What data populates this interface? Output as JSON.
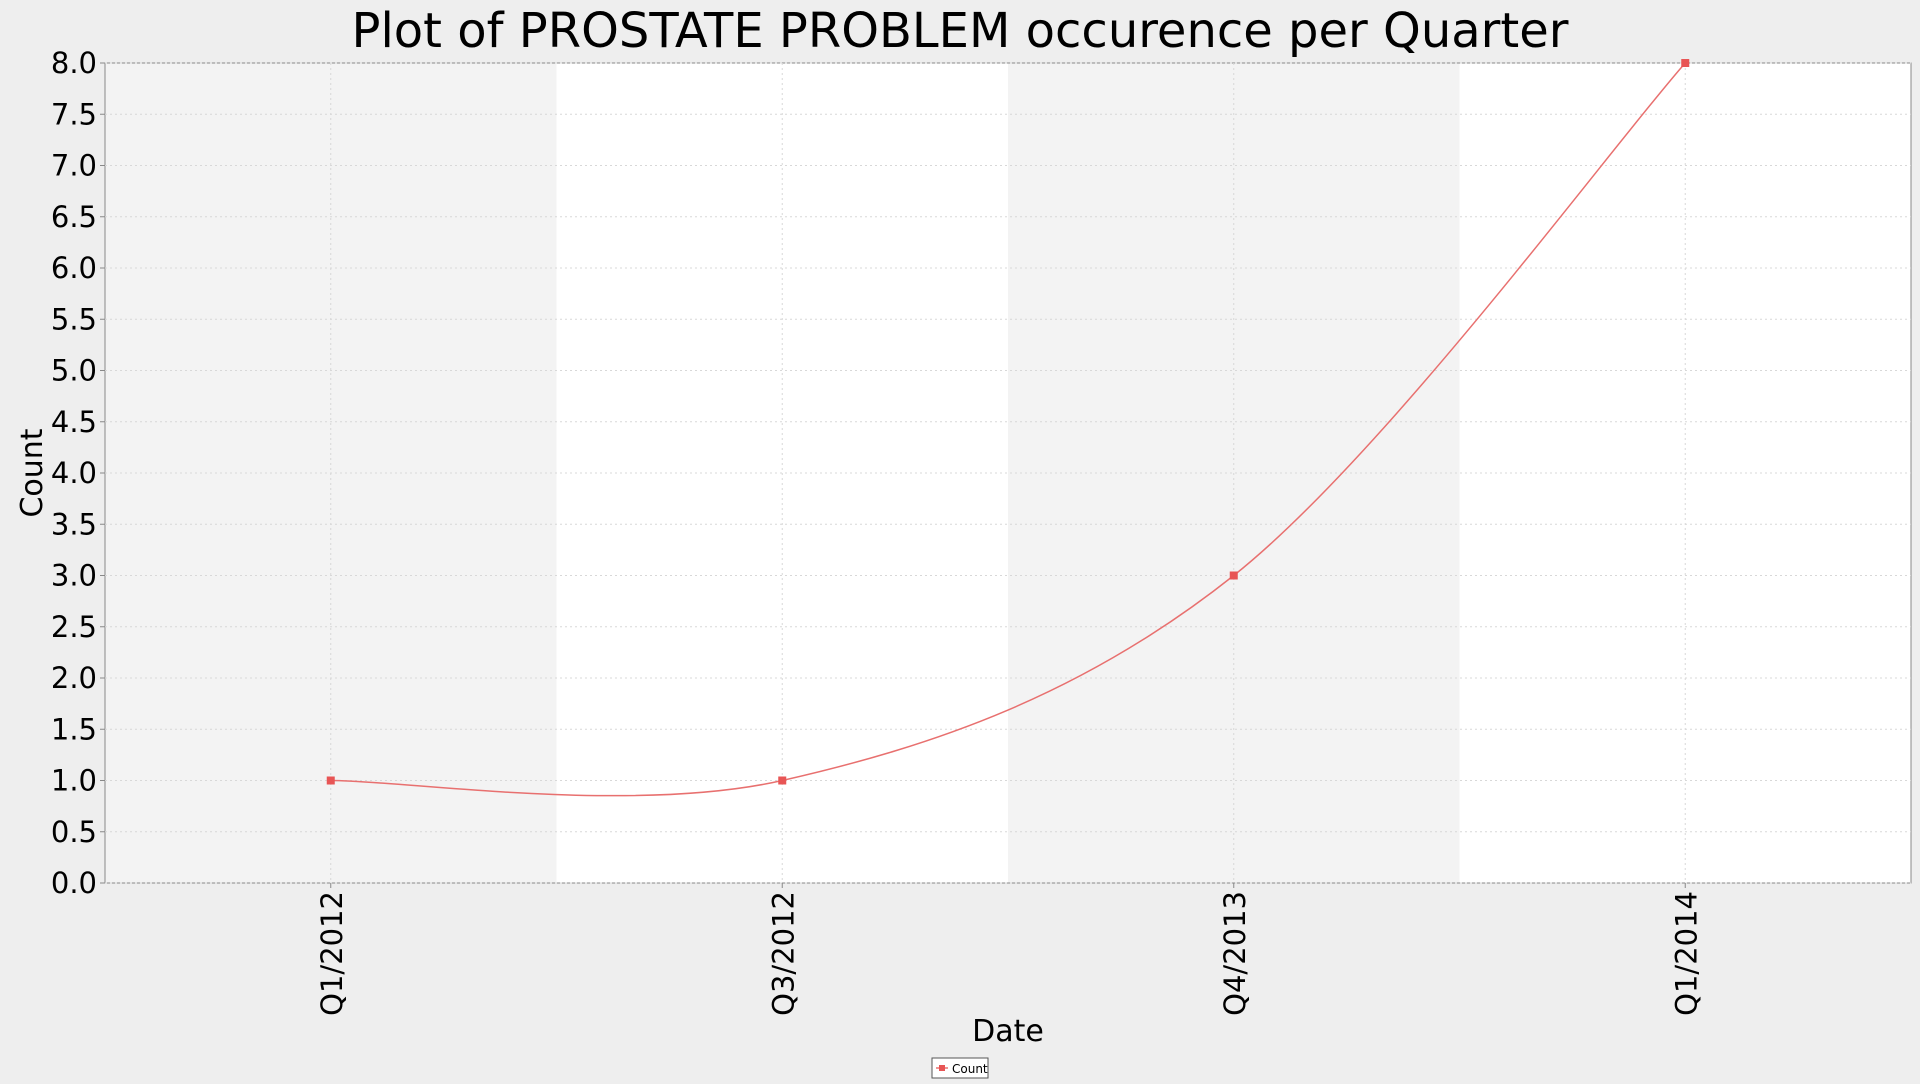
{
  "chart_data": {
    "type": "line",
    "title": "Plot of PROSTATE PROBLEM occurence per Quarter",
    "xlabel": "Date",
    "ylabel": "Count",
    "categories": [
      "Q1/2012",
      "Q3/2012",
      "Q4/2013",
      "Q1/2014"
    ],
    "series": [
      {
        "name": "Count",
        "values": [
          1.0,
          1.0,
          3.0,
          8.0
        ]
      }
    ],
    "ylim": [
      0.0,
      8.0
    ],
    "y_ticks": [
      0.0,
      0.5,
      1.0,
      1.5,
      2.0,
      2.5,
      3.0,
      3.5,
      4.0,
      4.5,
      5.0,
      5.5,
      6.0,
      6.5,
      7.0,
      7.5,
      8.0
    ],
    "grid": true,
    "smoothed": true,
    "alternating_bands": true,
    "legend_position": "bottom-center",
    "colors": {
      "line": "#e8706f",
      "marker": "#e85555",
      "background": "#eeeeee",
      "plot_background": "#ffffff",
      "band": "#f3f3f3",
      "grid": "#d8d8d8",
      "axis": "#888888"
    }
  }
}
